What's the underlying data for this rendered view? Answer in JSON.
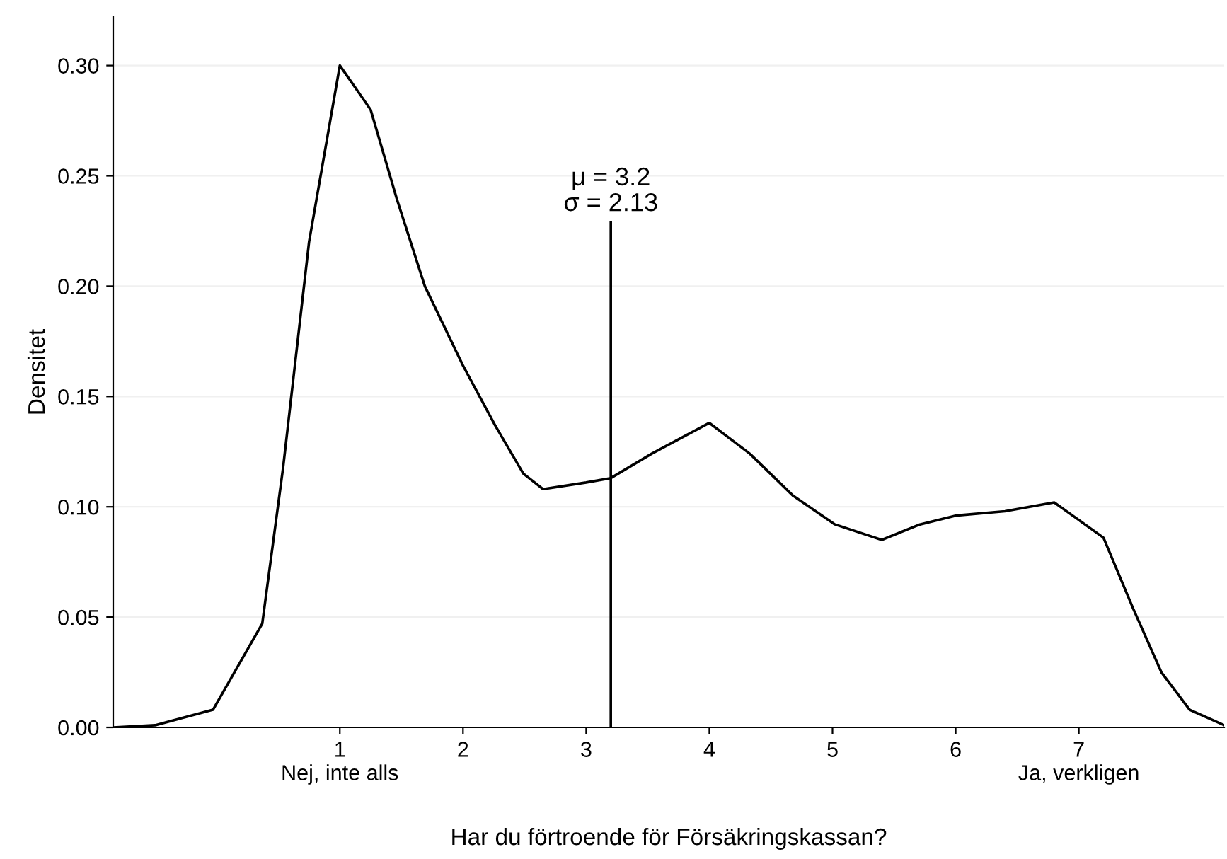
{
  "chart_data": {
    "type": "line",
    "xlabel": "Har du förtroende för Försäkringskassan?",
    "ylabel": "Densitet",
    "xlim": [
      -0.84,
      8.18
    ],
    "ylim": [
      0,
      0.322
    ],
    "xticks": [
      {
        "value": 1,
        "label": "1\nNej, inte alls"
      },
      2,
      3,
      4,
      5,
      6,
      {
        "value": 7,
        "label": "7\nJa, verkligen"
      }
    ],
    "yticks": [
      {
        "value": 0,
        "label": "0.00"
      },
      0.05,
      {
        "value": 0.1,
        "label": "0.10"
      },
      0.15,
      {
        "value": 0.2,
        "label": "0.20"
      },
      0.25,
      {
        "value": 0.3,
        "label": "0.30"
      }
    ],
    "grid": "y",
    "legend": false,
    "series": [
      {
        "color": "#000000",
        "x": [
          -0.84,
          -0.5,
          -0.03,
          0.37,
          0.54,
          0.75,
          1.0,
          1.25,
          1.46,
          1.69,
          2.0,
          2.26,
          2.49,
          2.65,
          3.0,
          3.2,
          3.53,
          4.0,
          4.33,
          4.68,
          5.02,
          5.4,
          5.71,
          6.0,
          6.4,
          6.8,
          7.2,
          7.44,
          7.67,
          7.9,
          8.18
        ],
        "values": [
          0.0,
          0.001,
          0.008,
          0.047,
          0.118,
          0.22,
          0.3,
          0.28,
          0.24,
          0.2,
          0.164,
          0.137,
          0.115,
          0.108,
          0.111,
          0.113,
          0.124,
          0.138,
          0.124,
          0.105,
          0.092,
          0.085,
          0.092,
          0.096,
          0.098,
          0.102,
          0.086,
          0.054,
          0.025,
          0.008,
          0.001
        ]
      },
      {
        "color": "#000000",
        "x": [
          3.2,
          3.2
        ],
        "values": [
          0,
          0.229
        ]
      }
    ],
    "annotations": [
      {
        "text": "μ = 3.2\nσ = 2.13",
        "x": 3.2,
        "y": 0.229
      }
    ]
  }
}
